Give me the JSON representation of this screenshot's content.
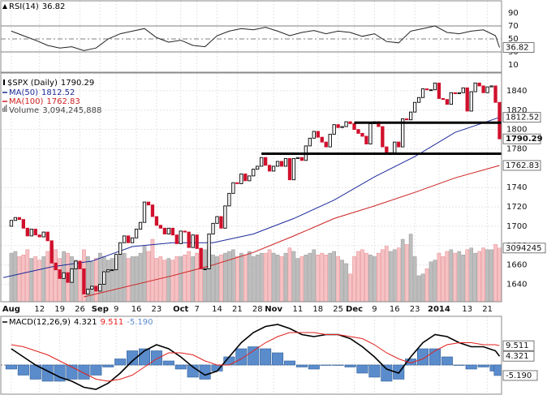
{
  "chart_data": {
    "type": "candlestick",
    "title": "$SPX (Daily)",
    "up_color": "#000000",
    "down_color": "#d0102c",
    "open": [
      1700,
      1706,
      1709,
      1707,
      1698,
      1690,
      1697,
      1691,
      1689,
      1694,
      1685,
      1662,
      1655,
      1646,
      1652,
      1642,
      1656,
      1664,
      1656,
      1630,
      1635,
      1638,
      1633,
      1640,
      1653,
      1655,
      1655,
      1671,
      1683,
      1690,
      1683,
      1688,
      1697,
      1704,
      1725,
      1722,
      1710,
      1701,
      1698,
      1692,
      1698,
      1691,
      1682,
      1695,
      1694,
      1678,
      1691,
      1677,
      1656,
      1656,
      1692,
      1703,
      1710,
      1698,
      1721,
      1734,
      1745,
      1744,
      1754,
      1747,
      1752,
      1759,
      1762,
      1771,
      1763,
      1757,
      1762,
      1767,
      1762,
      1770,
      1748,
      1770,
      1771,
      1768,
      1783,
      1791,
      1798,
      1792,
      1787,
      1782,
      1795,
      1805,
      1802,
      1803,
      1808,
      1806,
      1800,
      1796,
      1793,
      1785,
      1806,
      1808,
      1803,
      1782,
      1776,
      1776,
      1787,
      1782,
      1811,
      1810,
      1818,
      1828,
      1833,
      1842,
      1841,
      1841,
      1848,
      1832,
      1831,
      1826,
      1838,
      1837,
      1838,
      1843,
      1819,
      1839,
      1848,
      1845,
      1838,
      1844,
      1845,
      1828
    ],
    "close": [
      1706,
      1709,
      1707,
      1698,
      1690,
      1697,
      1691,
      1689,
      1694,
      1685,
      1662,
      1655,
      1646,
      1652,
      1642,
      1656,
      1664,
      1656,
      1630,
      1635,
      1638,
      1633,
      1640,
      1653,
      1655,
      1655,
      1671,
      1683,
      1690,
      1683,
      1688,
      1697,
      1704,
      1725,
      1722,
      1710,
      1701,
      1698,
      1692,
      1698,
      1691,
      1682,
      1695,
      1694,
      1678,
      1691,
      1677,
      1656,
      1656,
      1692,
      1703,
      1710,
      1698,
      1721,
      1734,
      1745,
      1744,
      1754,
      1747,
      1752,
      1759,
      1762,
      1771,
      1763,
      1757,
      1762,
      1767,
      1762,
      1770,
      1748,
      1770,
      1771,
      1768,
      1783,
      1791,
      1798,
      1792,
      1787,
      1782,
      1795,
      1805,
      1802,
      1803,
      1808,
      1806,
      1800,
      1796,
      1793,
      1785,
      1806,
      1808,
      1803,
      1782,
      1776,
      1776,
      1787,
      1782,
      1811,
      1810,
      1818,
      1828,
      1833,
      1842,
      1841,
      1841,
      1848,
      1832,
      1831,
      1826,
      1838,
      1837,
      1838,
      1843,
      1819,
      1839,
      1848,
      1845,
      1838,
      1844,
      1845,
      1828,
      1790.29
    ],
    "xlim": [
      -2.4,
      121.5
    ],
    "xticks": [
      {
        "value": 0,
        "label": "Aug"
      },
      {
        "value": 7,
        "label": "12"
      },
      {
        "value": 12,
        "label": "19"
      },
      {
        "value": 17,
        "label": "26"
      },
      {
        "value": 22,
        "label": "Sep"
      },
      {
        "value": 26,
        "label": "9"
      },
      {
        "value": 31,
        "label": "16"
      },
      {
        "value": 36,
        "label": "23"
      },
      {
        "value": 42,
        "label": "Oct"
      },
      {
        "value": 46,
        "label": "7"
      },
      {
        "value": 51,
        "label": "14"
      },
      {
        "value": 56,
        "label": "21"
      },
      {
        "value": 61,
        "label": "28"
      },
      {
        "value": 65,
        "label": "Nov"
      },
      {
        "value": 71,
        "label": "11"
      },
      {
        "value": 76,
        "label": "18"
      },
      {
        "value": 81,
        "label": "25"
      },
      {
        "value": 85,
        "label": "Dec"
      },
      {
        "value": 90,
        "label": "9"
      },
      {
        "value": 95,
        "label": "16"
      },
      {
        "value": 100,
        "label": "23"
      },
      {
        "value": 106,
        "label": "2014"
      },
      {
        "value": 113,
        "label": "13"
      },
      {
        "value": 118,
        "label": "21"
      }
    ],
    "ylim": [
      1622,
      1855
    ],
    "yticks": [
      1640,
      1660,
      1680,
      1700,
      1720,
      1740,
      1780,
      1800,
      1820,
      1840
    ],
    "grid": true,
    "overlays": [
      {
        "name": "MA(50)",
        "color": "#1c2a9a",
        "x": [
          -2,
          10,
          20,
          30,
          40,
          50,
          60,
          65,
          70,
          80,
          90,
          100,
          110,
          121
        ],
        "values": [
          1647,
          1658,
          1664,
          1679,
          1683,
          1683,
          1692,
          1700,
          1708,
          1727,
          1751,
          1772,
          1797,
          1812.52
        ]
      },
      {
        "name": "MA(100)",
        "color": "#cc1f1f",
        "x": [
          18,
          20,
          30,
          40,
          50,
          60,
          70,
          80,
          90,
          100,
          110,
          121
        ],
        "values": [
          1627,
          1629,
          1639,
          1649,
          1660,
          1673,
          1690,
          1708,
          1721,
          1735,
          1750,
          1762.83
        ]
      }
    ],
    "volume": {
      "name": "Volume",
      "value_label": "3,094,245,888",
      "axis_label": "3094245",
      "ylim": [
        0,
        13
      ],
      "values": [
        2.8,
        2.9,
        2.6,
        2.7,
        3.0,
        2.5,
        2.6,
        2.4,
        2.6,
        2.9,
        3.3,
        3.0,
        2.5,
        2.9,
        2.8,
        2.6,
        2.4,
        2.2,
        3.0,
        2.6,
        2.3,
        2.5,
        2.8,
        2.6,
        2.4,
        2.5,
        2.6,
        2.7,
        2.8,
        2.5,
        2.6,
        2.6,
        2.8,
        3.2,
        2.9,
        3.6,
        2.5,
        2.6,
        2.4,
        2.5,
        2.4,
        2.6,
        2.6,
        2.7,
        2.9,
        2.6,
        2.8,
        3.1,
        3.0,
        3.2,
        2.7,
        2.6,
        2.7,
        2.8,
        2.9,
        3.0,
        2.6,
        2.8,
        2.7,
        2.9,
        2.6,
        2.7,
        2.8,
        2.8,
        3.0,
        2.8,
        2.7,
        2.6,
        2.8,
        3.1,
        2.9,
        2.5,
        2.6,
        2.7,
        2.8,
        3.0,
        2.7,
        2.8,
        2.7,
        2.8,
        2.9,
        2.6,
        2.4,
        2.2,
        1.6,
        2.6,
        2.9,
        3.0,
        2.8,
        2.7,
        2.6,
        2.8,
        3.0,
        3.2,
        2.9,
        3.0,
        3.1,
        3.6,
        3.3,
        3.9,
        2.6,
        1.5,
        1.6,
        1.9,
        2.3,
        2.4,
        2.8,
        2.6,
        2.9,
        3.0,
        2.8,
        2.9,
        2.7,
        3.0,
        3.1,
        2.8,
        2.9,
        3.1,
        3.0,
        3.0,
        3.3,
        3.094245888
      ]
    },
    "annotations": [
      {
        "x": [
          62,
          121.5
        ],
        "value": 1775
      },
      {
        "x": [
          85,
          121.5
        ],
        "value": 1807
      }
    ],
    "rsi": {
      "name": "RSI(14)",
      "color": "#222222",
      "ylim": [
        0,
        100
      ],
      "yticks": [
        90,
        70,
        50,
        30,
        10
      ],
      "levels": [
        70,
        50,
        30
      ],
      "x": [
        0,
        3,
        6,
        9,
        12,
        15,
        18,
        21,
        24,
        27,
        30,
        33,
        36,
        39,
        42,
        45,
        48,
        51,
        54,
        57,
        60,
        63,
        66,
        69,
        72,
        75,
        78,
        81,
        84,
        87,
        90,
        93,
        96,
        99,
        102,
        105,
        108,
        111,
        114,
        117,
        120,
        121
      ],
      "values": [
        62,
        55,
        48,
        40,
        36,
        38,
        32,
        36,
        50,
        58,
        62,
        66,
        52,
        45,
        48,
        40,
        38,
        55,
        62,
        66,
        64,
        68,
        62,
        55,
        60,
        63,
        58,
        62,
        60,
        54,
        58,
        46,
        44,
        62,
        66,
        70,
        60,
        58,
        62,
        64,
        55,
        36.82
      ]
    },
    "macd": {
      "name": "MACD(12,26,9)",
      "ylim": [
        -14.8,
        23.2
      ],
      "x": [
        0,
        3,
        6,
        9,
        12,
        15,
        18,
        21,
        24,
        27,
        30,
        33,
        36,
        39,
        42,
        45,
        48,
        51,
        54,
        57,
        60,
        63,
        66,
        69,
        72,
        75,
        78,
        81,
        84,
        87,
        90,
        93,
        96,
        99,
        102,
        105,
        108,
        111,
        114,
        117,
        120,
        121
      ],
      "series": [
        {
          "color": "#000000",
          "values": [
            8,
            4,
            0,
            -3,
            -6,
            -8,
            -11,
            -12,
            -9,
            -4,
            2,
            7,
            10,
            8,
            4,
            -1,
            -5,
            -3,
            4,
            11,
            16,
            19,
            20,
            18,
            15,
            14,
            15,
            15,
            13,
            9,
            4,
            -2,
            -4,
            4,
            11,
            15,
            14,
            11,
            9,
            9,
            7,
            4.321
          ]
        },
        {
          "color": "#e0201c",
          "values": [
            10,
            9,
            7,
            5,
            2,
            -1,
            -4,
            -7,
            -8,
            -7,
            -5,
            -1,
            3,
            6,
            6,
            5,
            2,
            0,
            0,
            3,
            7,
            11,
            14,
            16,
            16,
            16,
            15,
            15,
            14,
            13,
            10,
            6,
            3,
            1,
            3,
            7,
            10,
            11,
            11,
            10,
            10,
            9.511
          ]
        }
      ],
      "histogram": {
        "color": "#5a8ccc",
        "last_label": "-5.190",
        "values": [
          -2,
          -5,
          -7,
          -8,
          -8,
          -7,
          -7,
          -5,
          -1,
          3,
          7,
          8,
          7,
          2,
          -2,
          -6,
          -7,
          -3,
          4,
          8,
          9,
          8,
          6,
          2,
          -1,
          -2,
          0,
          0,
          -1,
          -4,
          -6,
          -8,
          -7,
          3,
          8,
          8,
          4,
          0,
          -2,
          -1,
          -3,
          -5.19
        ]
      }
    }
  }
}
